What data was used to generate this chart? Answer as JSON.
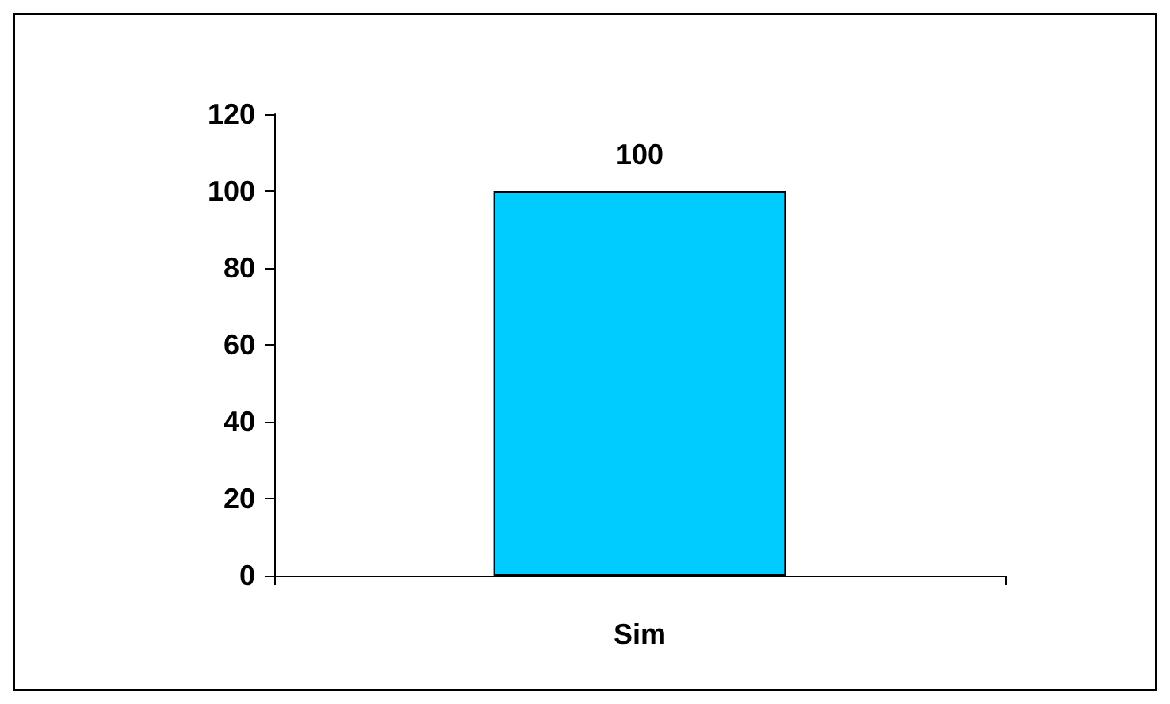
{
  "chart_data": {
    "type": "bar",
    "categories": [
      "Sim"
    ],
    "values": [
      100
    ],
    "color": "#00ccff",
    "ylim": [
      0,
      120
    ],
    "yticks": [
      0,
      20,
      40,
      60,
      80,
      100,
      120
    ],
    "grid": false,
    "data_labels": true
  }
}
